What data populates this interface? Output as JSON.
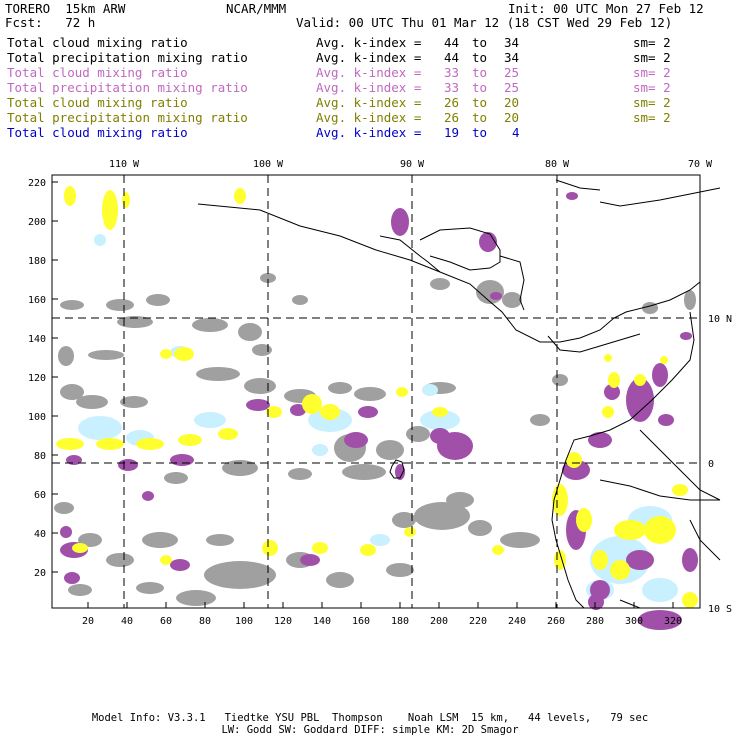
{
  "header": {
    "model": "TORERO  15km ARW",
    "org": "NCAR/MMM",
    "init": "Init: 00 UTC Mon 27 Feb 12",
    "fcst": "Fcst:   72 h",
    "valid": "Valid: 00 UTC Thu 01 Mar 12 (18 CST Wed 29 Feb 12)"
  },
  "legend": [
    {
      "name": "Total cloud mixing ratio",
      "kidx": "Avg. k-index = ",
      "lo": "44",
      "to": "to",
      "hi": "34",
      "sm": "sm= 2",
      "color": "#000000"
    },
    {
      "name": "Total precipitation mixing ratio",
      "kidx": "Avg. k-index = ",
      "lo": "44",
      "to": "to",
      "hi": "34",
      "sm": "sm= 2",
      "color": "#000000"
    },
    {
      "name": "Total cloud mixing ratio",
      "kidx": "Avg. k-index = ",
      "lo": "33",
      "to": "to",
      "hi": "25",
      "sm": "sm= 2",
      "color": "#c069c0"
    },
    {
      "name": "Total precipitation mixing ratio",
      "kidx": "Avg. k-index = ",
      "lo": "33",
      "to": "to",
      "hi": "25",
      "sm": "sm= 2",
      "color": "#c069c0"
    },
    {
      "name": "Total cloud mixing ratio",
      "kidx": "Avg. k-index = ",
      "lo": "26",
      "to": "to",
      "hi": "20",
      "sm": "sm= 2",
      "color": "#808000"
    },
    {
      "name": "Total precipitation mixing ratio",
      "kidx": "Avg. k-index = ",
      "lo": "26",
      "to": "to",
      "hi": "20",
      "sm": "sm= 2",
      "color": "#808000"
    },
    {
      "name": "Total cloud mixing ratio",
      "kidx": "Avg. k-index = ",
      "lo": "19",
      "to": "to",
      "hi": "4",
      "sm": "",
      "color": "#0000c8"
    }
  ],
  "map": {
    "lon_labels": [
      "110 W",
      "100 W",
      "90 W",
      "80 W",
      "70 W"
    ],
    "lat_labels": [
      "10 N",
      "0",
      "10 S"
    ],
    "y_ticks": [
      "220",
      "200",
      "180",
      "160",
      "140",
      "120",
      "100",
      "80",
      "60",
      "40",
      "20"
    ],
    "x_ticks": [
      "20",
      "40",
      "60",
      "80",
      "100",
      "120",
      "140",
      "160",
      "180",
      "200",
      "220",
      "240",
      "260",
      "280",
      "300",
      "320"
    ],
    "colors": {
      "gray": "#a0a0a0",
      "purple": "#a050a8",
      "yellow": "#ffff30",
      "lightblue": "#c8f0ff",
      "grid": "#000000"
    }
  },
  "footer": {
    "line1": "Model Info: V3.3.1   Tiedtke YSU PBL  Thompson    Noah LSM  15 km,   44 levels,   79 sec",
    "line2": "LW: Godd SW: Goddard DIFF: simple KM: 2D Smagor"
  }
}
